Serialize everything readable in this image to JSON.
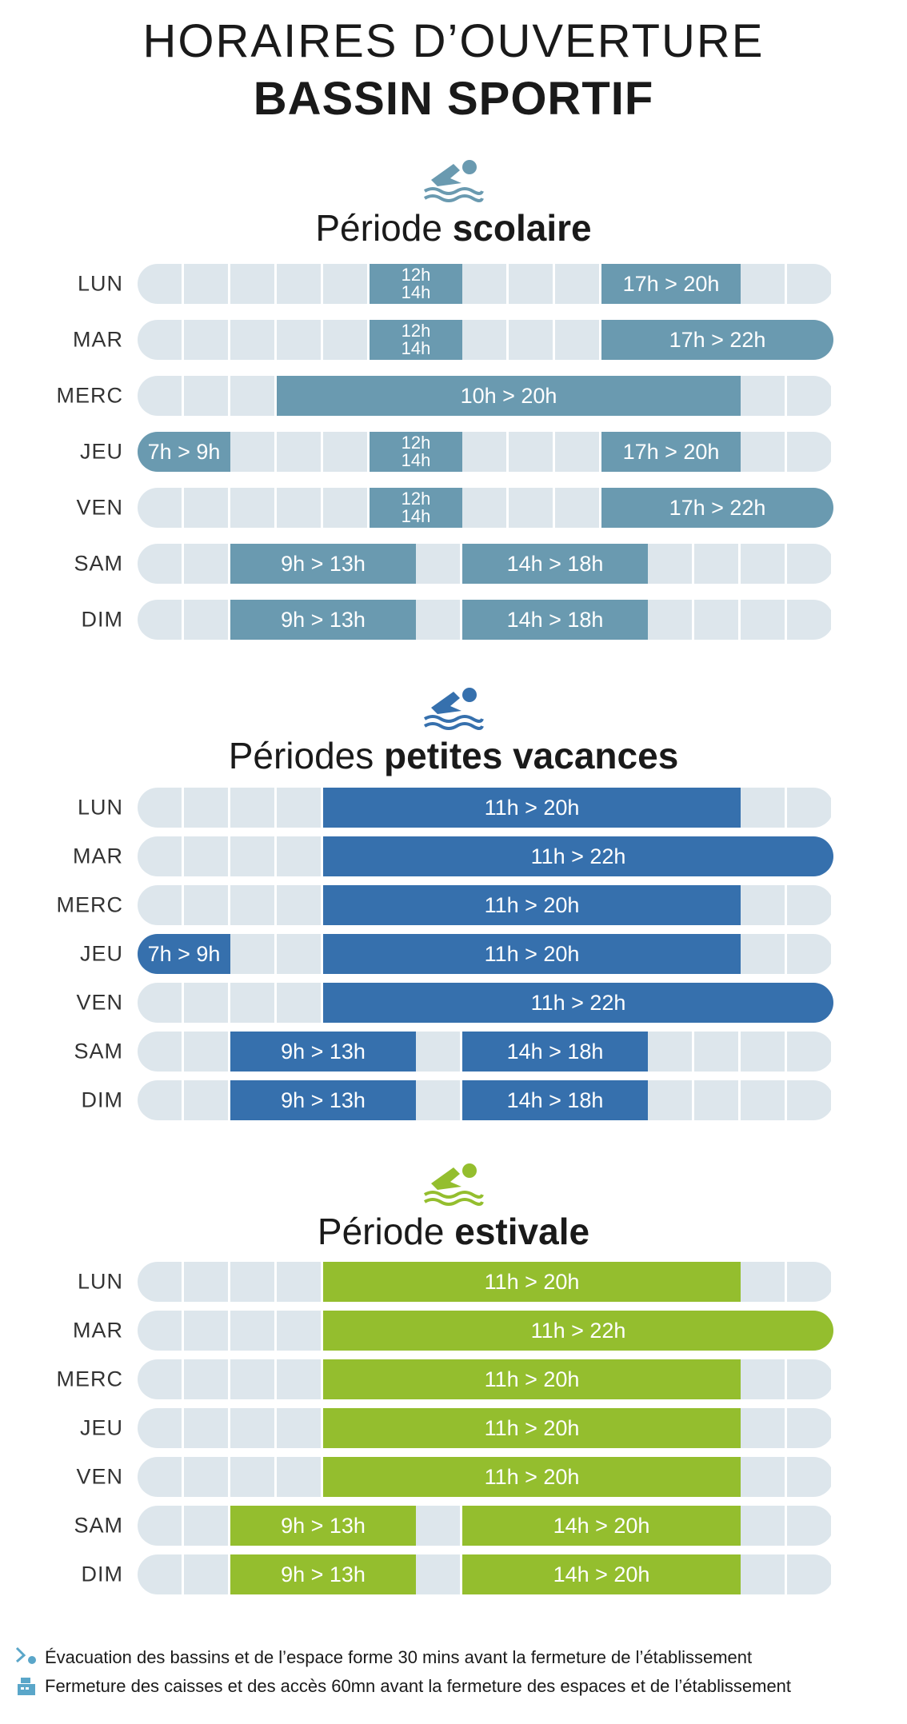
{
  "header": {
    "line1": "HORAIRES D’OUVERTURE",
    "line2": "BASSIN SPORTIF"
  },
  "sections": [
    {
      "title_regular": "Période ",
      "title_bold": "scolaire",
      "color": "#6a9ab0",
      "icon": "swimmer-icon",
      "days": [
        {
          "day": "LUN",
          "blocks": [
            {
              "label": "12h\n14h",
              "start": 12,
              "end": 14,
              "stacked": true
            },
            {
              "label": "17h > 20h",
              "start": 17,
              "end": 20
            }
          ]
        },
        {
          "day": "MAR",
          "blocks": [
            {
              "label": "12h\n14h",
              "start": 12,
              "end": 14,
              "stacked": true
            },
            {
              "label": "17h > 22h",
              "start": 17,
              "end": 22
            }
          ]
        },
        {
          "day": "MERC",
          "blocks": [
            {
              "label": "10h > 20h",
              "start": 10,
              "end": 20
            }
          ]
        },
        {
          "day": "JEU",
          "blocks": [
            {
              "label": "7h > 9h",
              "start": 7,
              "end": 9
            },
            {
              "label": "12h\n14h",
              "start": 12,
              "end": 14,
              "stacked": true
            },
            {
              "label": "17h > 20h",
              "start": 17,
              "end": 20
            }
          ]
        },
        {
          "day": "VEN",
          "blocks": [
            {
              "label": "12h\n14h",
              "start": 12,
              "end": 14,
              "stacked": true
            },
            {
              "label": "17h > 22h",
              "start": 17,
              "end": 22
            }
          ]
        },
        {
          "day": "SAM",
          "blocks": [
            {
              "label": "9h > 13h",
              "start": 9,
              "end": 13
            },
            {
              "label": "14h > 18h",
              "start": 14,
              "end": 18
            }
          ]
        },
        {
          "day": "DIM",
          "blocks": [
            {
              "label": "9h > 13h",
              "start": 9,
              "end": 13
            },
            {
              "label": "14h > 18h",
              "start": 14,
              "end": 18
            }
          ]
        }
      ]
    },
    {
      "title_regular": "Périodes ",
      "title_bold": "petites vacances",
      "color": "#3670ad",
      "icon": "swimmer-icon",
      "days": [
        {
          "day": "LUN",
          "blocks": [
            {
              "label": "11h > 20h",
              "start": 11,
              "end": 20
            }
          ]
        },
        {
          "day": "MAR",
          "blocks": [
            {
              "label": "11h > 22h",
              "start": 11,
              "end": 22
            }
          ]
        },
        {
          "day": "MERC",
          "blocks": [
            {
              "label": "11h > 20h",
              "start": 11,
              "end": 20
            }
          ]
        },
        {
          "day": "JEU",
          "blocks": [
            {
              "label": "7h > 9h",
              "start": 7,
              "end": 9
            },
            {
              "label": "11h > 20h",
              "start": 11,
              "end": 20
            }
          ]
        },
        {
          "day": "VEN",
          "blocks": [
            {
              "label": "11h > 22h",
              "start": 11,
              "end": 22
            }
          ]
        },
        {
          "day": "SAM",
          "blocks": [
            {
              "label": "9h > 13h",
              "start": 9,
              "end": 13
            },
            {
              "label": "14h > 18h",
              "start": 14,
              "end": 18
            }
          ]
        },
        {
          "day": "DIM",
          "blocks": [
            {
              "label": "9h > 13h",
              "start": 9,
              "end": 13
            },
            {
              "label": "14h > 18h",
              "start": 14,
              "end": 18
            }
          ]
        }
      ]
    },
    {
      "title_regular": "Période ",
      "title_bold": "estivale",
      "color": "#94be2e",
      "icon": "swimmer-icon",
      "days": [
        {
          "day": "LUN",
          "blocks": [
            {
              "label": "11h > 20h",
              "start": 11,
              "end": 20
            }
          ]
        },
        {
          "day": "MAR",
          "blocks": [
            {
              "label": "11h > 22h",
              "start": 11,
              "end": 22
            }
          ]
        },
        {
          "day": "MERC",
          "blocks": [
            {
              "label": "11h > 20h",
              "start": 11,
              "end": 20
            }
          ]
        },
        {
          "day": "JEU",
          "blocks": [
            {
              "label": "11h > 20h",
              "start": 11,
              "end": 20
            }
          ]
        },
        {
          "day": "VEN",
          "blocks": [
            {
              "label": "11h > 20h",
              "start": 11,
              "end": 20
            }
          ]
        },
        {
          "day": "SAM",
          "blocks": [
            {
              "label": "9h > 13h",
              "start": 9,
              "end": 13
            },
            {
              "label": "14h > 20h",
              "start": 14,
              "end": 20
            }
          ]
        },
        {
          "day": "DIM",
          "blocks": [
            {
              "label": "9h > 13h",
              "start": 9,
              "end": 13
            },
            {
              "label": "14h > 20h",
              "start": 14,
              "end": 20
            }
          ]
        }
      ]
    }
  ],
  "footer": {
    "note1": "Évacuation des bassins et de l’espace forme 30 mins avant la fermeture de l’établissement",
    "note2": "Fermeture des caisses et des accès 60mn avant la fermeture des espaces et de l’établissement",
    "note1_icon": "diving-swimmer-icon",
    "note2_icon": "cash-register-icon",
    "icon_color": "#5aa6c9"
  }
}
